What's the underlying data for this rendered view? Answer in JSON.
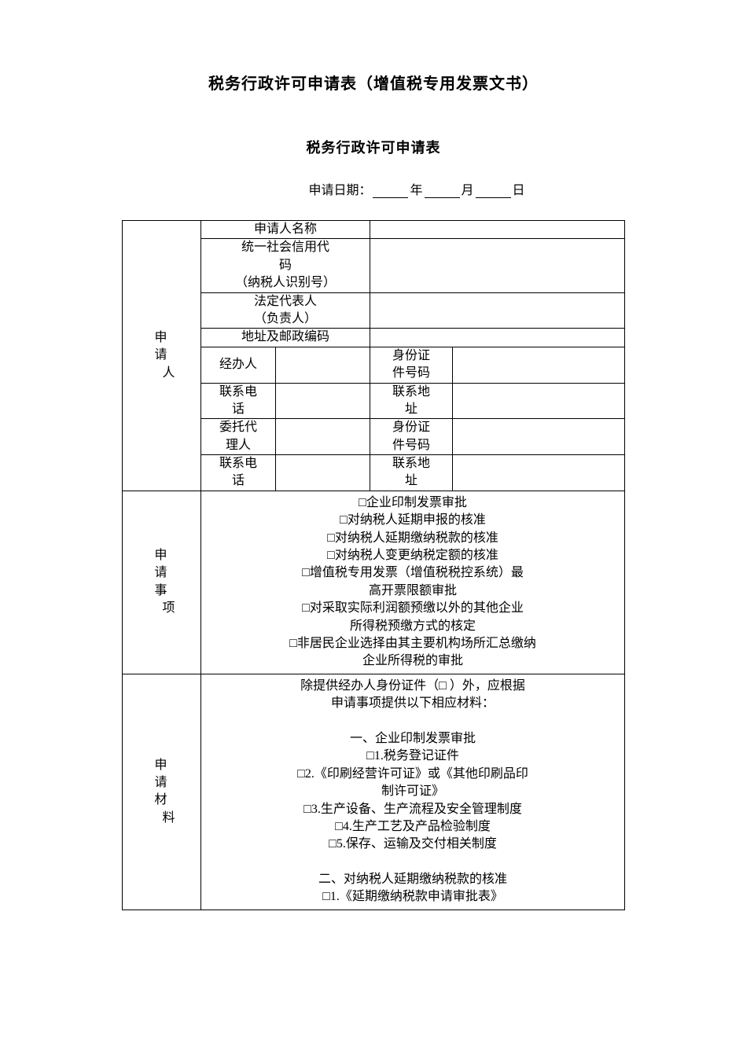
{
  "colors": {
    "background": "#ffffff",
    "text": "#000000",
    "border": "#000000"
  },
  "typography": {
    "font_family": "SimSun",
    "title_fontsize": 20,
    "form_title_fontsize": 18,
    "body_fontsize": 16
  },
  "doc_title": "税务行政许可申请表（增值税专用发票文书）",
  "form_title": "税务行政许可申请表",
  "date_line": {
    "prefix": "申请日期：",
    "year": "年",
    "month": "月",
    "day": "日"
  },
  "sections": {
    "applicant": {
      "header_chars": [
        "申",
        "请",
        "人"
      ],
      "rows": {
        "name_label": "申请人名称",
        "name_value": "",
        "credit_code_label_l1": "统一社会信用代",
        "credit_code_label_l2": "码",
        "credit_code_label_l3": "（纳税人识别号）",
        "credit_code_value": "",
        "legal_rep_label_l1": "法定代表人",
        "legal_rep_label_l2": "（负责人）",
        "legal_rep_value": "",
        "address_label": "地址及邮政编码",
        "address_value": "",
        "handler_label": "经办人",
        "handler_value": "",
        "handler_id_label_l1": "身份证",
        "handler_id_label_l2": "件号码",
        "handler_id_value": "",
        "handler_phone_label_l1": "联系电",
        "handler_phone_label_l2": "话",
        "handler_phone_value": "",
        "handler_addr_label_l1": "联系地",
        "handler_addr_label_l2": "址",
        "handler_addr_value": "",
        "agent_label_l1": "委托代",
        "agent_label_l2": "理人",
        "agent_value": "",
        "agent_id_label_l1": "身份证",
        "agent_id_label_l2": "件号码",
        "agent_id_value": "",
        "agent_phone_label_l1": "联系电",
        "agent_phone_label_l2": "话",
        "agent_phone_value": "",
        "agent_addr_label_l1": "联系地",
        "agent_addr_label_l2": "址",
        "agent_addr_value": ""
      }
    },
    "matters": {
      "header_chars": [
        "申",
        "请",
        "事",
        "项"
      ],
      "lines": [
        "□企业印制发票审批",
        "□对纳税人延期申报的核准",
        "□对纳税人延期缴纳税款的核准",
        "□对纳税人变更纳税定额的核准",
        "□增值税专用发票（增值税税控系统）最",
        "高开票限额审批",
        "□对采取实际利润额预缴以外的其他企业",
        "所得税预缴方式的核定",
        "□非居民企业选择由其主要机构场所汇总缴纳",
        "企业所得税的审批"
      ]
    },
    "materials": {
      "header_chars": [
        "申",
        "请",
        "材",
        "料"
      ],
      "lines": [
        "除提供经办人身份证件（□ ）外，应根据",
        "申请事项提供以下相应材料：",
        "",
        "一、企业印制发票审批",
        "□1.税务登记证件",
        "□2.《印刷经营许可证》或《其他印刷品印",
        "制许可证》",
        "□3.生产设备、生产流程及安全管理制度",
        "□4.生产工艺及产品检验制度",
        "□5.保存、运输及交付相关制度",
        "",
        "二、对纳税人延期缴纳税款的核准",
        "□1.《延期缴纳税款申请审批表》"
      ]
    }
  }
}
